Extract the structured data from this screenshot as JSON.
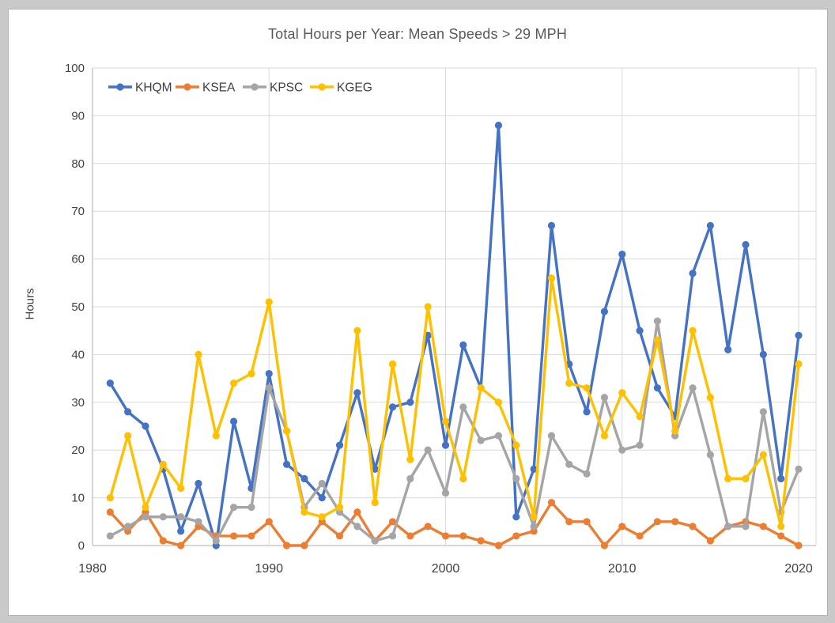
{
  "chart_data": {
    "type": "line",
    "title": "Total Hours per Year: Mean Speeds > 29 MPH",
    "xlabel": "",
    "ylabel": "Hours",
    "x": [
      1981,
      1982,
      1983,
      1984,
      1985,
      1986,
      1987,
      1988,
      1989,
      1990,
      1991,
      1992,
      1993,
      1994,
      1995,
      1996,
      1997,
      1998,
      1999,
      2000,
      2001,
      2002,
      2003,
      2004,
      2005,
      2006,
      2007,
      2008,
      2009,
      2010,
      2011,
      2012,
      2013,
      2014,
      2015,
      2016,
      2017,
      2018,
      2019,
      2020
    ],
    "x_axis": {
      "min": 1980,
      "max": 2021,
      "ticks": [
        1980,
        1990,
        2000,
        2010,
        2020
      ]
    },
    "y_axis": {
      "min": 0,
      "max": 100,
      "ticks": [
        0,
        10,
        20,
        30,
        40,
        50,
        60,
        70,
        80,
        90,
        100
      ]
    },
    "grid": {
      "horizontal": true,
      "vertical_ticks": [
        1990,
        2000,
        2010,
        2020
      ]
    },
    "legend_position": "top-left-inside",
    "series": [
      {
        "name": "KHQM",
        "color": "#4472C4",
        "values": [
          34,
          28,
          25,
          16,
          3,
          13,
          0,
          26,
          12,
          36,
          17,
          14,
          10,
          21,
          32,
          16,
          29,
          30,
          44,
          21,
          42,
          33,
          88,
          6,
          16,
          67,
          38,
          28,
          49,
          61,
          45,
          33,
          27,
          57,
          67,
          41,
          63,
          40,
          14,
          44
        ]
      },
      {
        "name": "KSEA",
        "color": "#ED7D31",
        "values": [
          7,
          3,
          7,
          1,
          0,
          4,
          2,
          2,
          2,
          5,
          0,
          0,
          5,
          2,
          7,
          1,
          5,
          2,
          4,
          2,
          2,
          1,
          0,
          2,
          3,
          9,
          5,
          5,
          0,
          4,
          2,
          5,
          5,
          4,
          1,
          4,
          5,
          4,
          2,
          0
        ]
      },
      {
        "name": "KPSC",
        "color": "#A5A5A5",
        "values": [
          2,
          4,
          6,
          6,
          6,
          5,
          1,
          8,
          8,
          33,
          24,
          8,
          13,
          7,
          4,
          1,
          2,
          14,
          20,
          11,
          29,
          22,
          23,
          14,
          4,
          23,
          17,
          15,
          31,
          20,
          21,
          47,
          23,
          33,
          19,
          4,
          4,
          28,
          7,
          16
        ]
      },
      {
        "name": "KGEG",
        "color": "#FFC000",
        "values": [
          10,
          23,
          8,
          17,
          12,
          40,
          23,
          34,
          36,
          51,
          24,
          7,
          6,
          8,
          45,
          9,
          38,
          18,
          50,
          26,
          14,
          33,
          30,
          21,
          6,
          56,
          34,
          33,
          23,
          32,
          27,
          43,
          24,
          45,
          31,
          14,
          14,
          19,
          4,
          38
        ]
      }
    ],
    "colors": {
      "gridline": "#D9D9D9",
      "axis_line": "#BFBFBF",
      "tick_label": "#404040",
      "title": "#595959",
      "background": "#FFFFFF",
      "page_background": "#C9C9C9"
    }
  }
}
